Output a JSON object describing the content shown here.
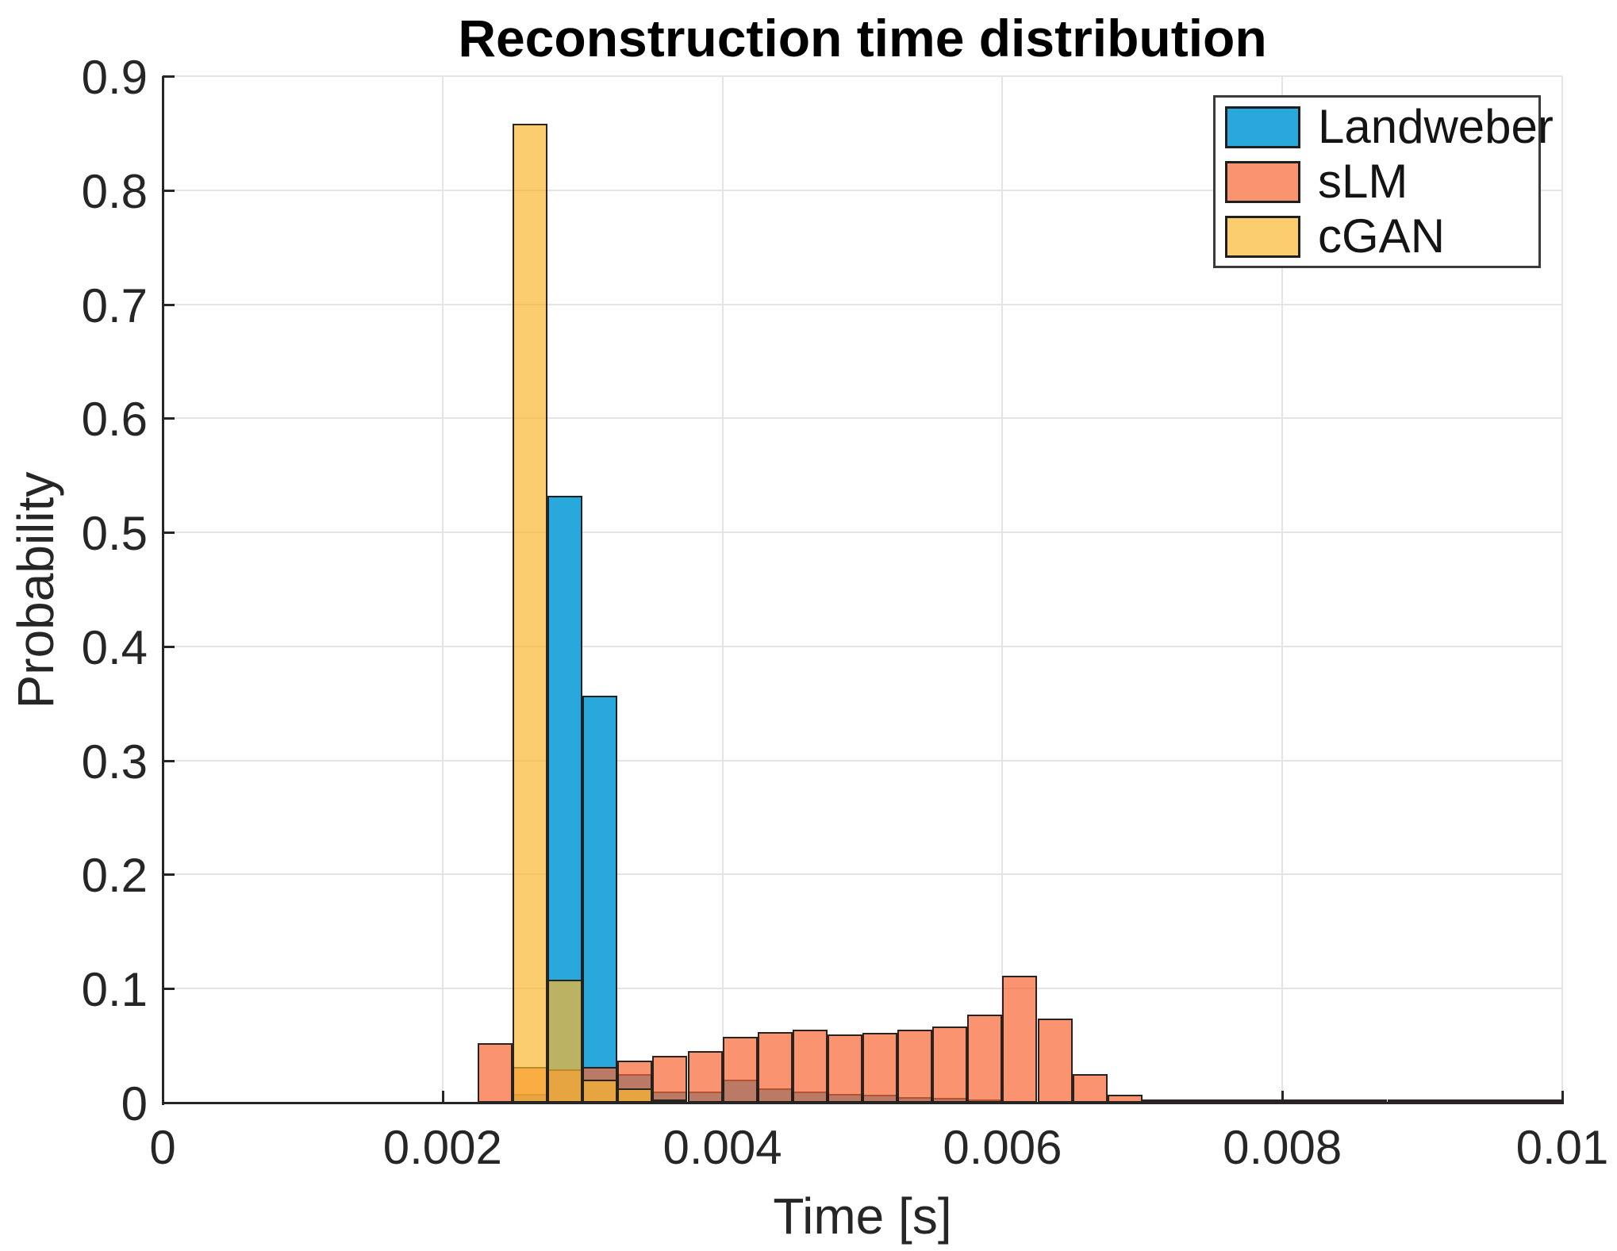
{
  "title": "Reconstruction time distribution",
  "xlabel": "Time [s]",
  "ylabel": "Probability",
  "legend": {
    "position": "top-right",
    "items": [
      {
        "label": "Landweber"
      },
      {
        "label": "sLM"
      },
      {
        "label": "cGAN"
      }
    ]
  },
  "chart_data": {
    "type": "bar",
    "subtype": "overlaid-histogram",
    "title": "Reconstruction time distribution",
    "xlabel": "Time [s]",
    "ylabel": "Probability",
    "xlim": [
      0,
      0.01
    ],
    "ylim": [
      0,
      0.9
    ],
    "grid": true,
    "bin_width": 0.00025,
    "legend_position": "top-right",
    "x_ticks": [
      {
        "v": 0,
        "label": "0"
      },
      {
        "v": 0.002,
        "label": "0.002"
      },
      {
        "v": 0.004,
        "label": "0.004"
      },
      {
        "v": 0.006,
        "label": "0.006"
      },
      {
        "v": 0.008,
        "label": "0.008"
      },
      {
        "v": 0.01,
        "label": "0.01"
      }
    ],
    "y_ticks": [
      {
        "v": 0.0,
        "label": "0"
      },
      {
        "v": 0.1,
        "label": "0.1"
      },
      {
        "v": 0.2,
        "label": "0.2"
      },
      {
        "v": 0.3,
        "label": "0.3"
      },
      {
        "v": 0.4,
        "label": "0.4"
      },
      {
        "v": 0.5,
        "label": "0.5"
      },
      {
        "v": 0.6,
        "label": "0.6"
      },
      {
        "v": 0.7,
        "label": "0.7"
      },
      {
        "v": 0.8,
        "label": "0.8"
      },
      {
        "v": 0.9,
        "label": "0.9"
      }
    ],
    "series": [
      {
        "name": "Landweber",
        "color": "#29A9DB",
        "alpha": 1.0,
        "bins": [
          [
            0.0025,
            0.008
          ],
          [
            0.00275,
            0.532
          ],
          [
            0.003,
            0.357
          ],
          [
            0.00325,
            0.025
          ],
          [
            0.0035,
            0.01
          ],
          [
            0.00375,
            0.01
          ],
          [
            0.004,
            0.02
          ],
          [
            0.00425,
            0.0125
          ],
          [
            0.0045,
            0.01
          ],
          [
            0.00475,
            0.008
          ],
          [
            0.005,
            0.007
          ],
          [
            0.00525,
            0.005
          ],
          [
            0.0055,
            0.004
          ],
          [
            0.00575,
            0.002
          ]
        ]
      },
      {
        "name": "sLM",
        "color": "#F86633",
        "alpha": 0.7,
        "bins": [
          [
            0.00225,
            0.052
          ],
          [
            0.0025,
            0.031
          ],
          [
            0.00275,
            0.029
          ],
          [
            0.003,
            0.031
          ],
          [
            0.00325,
            0.037
          ],
          [
            0.0035,
            0.041
          ],
          [
            0.00375,
            0.045
          ],
          [
            0.004,
            0.058
          ],
          [
            0.00425,
            0.062
          ],
          [
            0.0045,
            0.064
          ],
          [
            0.00475,
            0.06
          ],
          [
            0.005,
            0.061
          ],
          [
            0.00525,
            0.064
          ],
          [
            0.0055,
            0.067
          ],
          [
            0.00575,
            0.077
          ],
          [
            0.006,
            0.111
          ],
          [
            0.00625,
            0.074
          ],
          [
            0.0065,
            0.025
          ],
          [
            0.00675,
            0.007
          ],
          [
            0.007,
            0.003
          ],
          [
            0.00725,
            0.002
          ],
          [
            0.0075,
            0.002
          ],
          [
            0.00775,
            0.001
          ],
          [
            0.008,
            0.001
          ],
          [
            0.00825,
            0.0005
          ],
          [
            0.0085,
            0.0005
          ],
          [
            0.00875,
            0.0005
          ],
          [
            0.009,
            0.0005
          ],
          [
            0.00925,
            0.0005
          ],
          [
            0.0095,
            0.0005
          ],
          [
            0.00975,
            0.0005
          ]
        ]
      },
      {
        "name": "cGAN",
        "color": "#F9B831",
        "alpha": 0.7,
        "bins": [
          [
            0.0025,
            0.858
          ],
          [
            0.00275,
            0.108
          ],
          [
            0.003,
            0.02
          ],
          [
            0.00325,
            0.0125
          ],
          [
            0.0035,
            0.003
          ]
        ]
      }
    ]
  }
}
